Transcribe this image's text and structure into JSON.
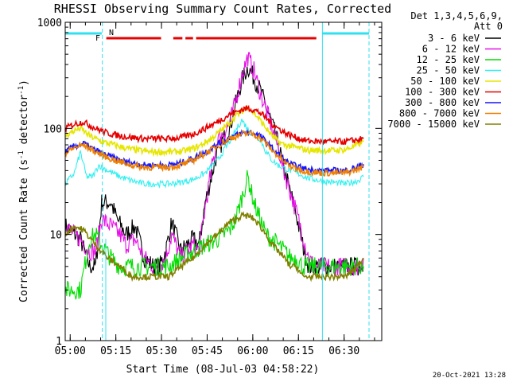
{
  "chart_data": {
    "type": "line",
    "title": "RHESSI Observing Summary Count Rates, Corrected",
    "xlabel": "Start Time (08-Jul-03 04:58:22)",
    "ylabel": "Corrected Count Rate (s",
    "ylabel_sup1": "-1",
    "ylabel_mid": " detector",
    "ylabel_sup2": "-1",
    "ylabel_end": ")",
    "y_scale": "log",
    "ylim": [
      1,
      1000
    ],
    "xlim_minutes": [
      0,
      104
    ],
    "x_start_time": "04:58:22",
    "x_ticks": [
      "05:00",
      "05:15",
      "05:30",
      "05:45",
      "06:00",
      "06:15",
      "06:30"
    ],
    "y_ticks": [
      "1",
      "10",
      "100",
      "1000"
    ],
    "legend_header": [
      "Det 1,3,4,5,6,9,",
      "Att 0"
    ],
    "timestamp": "20-Oct-2021 13:28",
    "flags": [
      {
        "label": "F",
        "color": "#e60000"
      },
      {
        "label": "N",
        "color": "#30e0f0"
      }
    ],
    "series": [
      {
        "name": "3 - 6 keV",
        "color": "#000000",
        "points": [
          [
            0,
            12
          ],
          [
            5,
            9
          ],
          [
            8,
            5
          ],
          [
            10,
            5
          ],
          [
            12,
            20
          ],
          [
            15,
            20
          ],
          [
            17,
            14
          ],
          [
            20,
            10
          ],
          [
            23,
            12
          ],
          [
            26,
            6
          ],
          [
            29,
            5
          ],
          [
            31,
            5
          ],
          [
            33,
            7
          ],
          [
            35,
            13
          ],
          [
            38,
            7
          ],
          [
            40,
            8
          ],
          [
            42,
            9
          ],
          [
            44,
            8
          ],
          [
            46,
            20
          ],
          [
            48,
            35
          ],
          [
            50,
            60
          ],
          [
            52,
            80
          ],
          [
            54,
            100
          ],
          [
            56,
            170
          ],
          [
            58,
            280
          ],
          [
            60,
            380
          ],
          [
            62,
            300
          ],
          [
            64,
            230
          ],
          [
            66,
            160
          ],
          [
            68,
            110
          ],
          [
            70,
            70
          ],
          [
            72,
            40
          ],
          [
            74,
            25
          ],
          [
            76,
            15
          ],
          [
            78,
            8
          ],
          [
            80,
            5
          ],
          [
            82,
            5
          ],
          [
            84,
            5
          ],
          [
            86,
            5
          ],
          [
            88,
            5
          ],
          [
            90,
            5
          ],
          [
            92,
            5
          ],
          [
            94,
            5
          ],
          [
            96,
            5
          ],
          [
            98,
            5
          ]
        ]
      },
      {
        "name": "6 - 12 keV",
        "color": "#e60fe6",
        "points": [
          [
            0,
            12
          ],
          [
            5,
            9
          ],
          [
            8,
            7
          ],
          [
            10,
            7
          ],
          [
            12,
            14
          ],
          [
            15,
            12
          ],
          [
            18,
            10
          ],
          [
            20,
            8
          ],
          [
            23,
            9
          ],
          [
            26,
            6
          ],
          [
            29,
            5
          ],
          [
            31,
            5
          ],
          [
            33,
            6
          ],
          [
            35,
            10
          ],
          [
            38,
            6
          ],
          [
            40,
            7
          ],
          [
            42,
            8
          ],
          [
            44,
            7
          ],
          [
            46,
            18
          ],
          [
            48,
            40
          ],
          [
            50,
            80
          ],
          [
            52,
            90
          ],
          [
            54,
            110
          ],
          [
            56,
            180
          ],
          [
            58,
            320
          ],
          [
            60,
            470
          ],
          [
            62,
            350
          ],
          [
            64,
            220
          ],
          [
            66,
            150
          ],
          [
            68,
            100
          ],
          [
            70,
            65
          ],
          [
            72,
            38
          ],
          [
            74,
            25
          ],
          [
            76,
            16
          ],
          [
            78,
            10
          ],
          [
            80,
            6
          ],
          [
            82,
            5
          ],
          [
            84,
            5
          ],
          [
            86,
            5
          ],
          [
            88,
            5
          ],
          [
            90,
            5
          ],
          [
            92,
            5
          ],
          [
            94,
            5
          ],
          [
            96,
            5
          ],
          [
            98,
            6
          ]
        ]
      },
      {
        "name": "12 - 25 keV",
        "color": "#00dd00",
        "points": [
          [
            0,
            3
          ],
          [
            5,
            3
          ],
          [
            8,
            9
          ],
          [
            10,
            10
          ],
          [
            12,
            8
          ],
          [
            15,
            6
          ],
          [
            18,
            5
          ],
          [
            22,
            5
          ],
          [
            26,
            5
          ],
          [
            30,
            5
          ],
          [
            34,
            5
          ],
          [
            38,
            6
          ],
          [
            42,
            7
          ],
          [
            46,
            8
          ],
          [
            50,
            9
          ],
          [
            54,
            11
          ],
          [
            56,
            14
          ],
          [
            58,
            22
          ],
          [
            60,
            35
          ],
          [
            62,
            20
          ],
          [
            64,
            14
          ],
          [
            66,
            10
          ],
          [
            68,
            9
          ],
          [
            70,
            8
          ],
          [
            72,
            7
          ],
          [
            74,
            6
          ],
          [
            76,
            6
          ],
          [
            78,
            5
          ],
          [
            80,
            5
          ],
          [
            84,
            5
          ],
          [
            88,
            5
          ],
          [
            92,
            5
          ],
          [
            96,
            5
          ],
          [
            98,
            5
          ]
        ]
      },
      {
        "name": "25 - 50 keV",
        "color": "#30f0f0",
        "points": [
          [
            0,
            30
          ],
          [
            3,
            38
          ],
          [
            5,
            60
          ],
          [
            7,
            35
          ],
          [
            9,
            35
          ],
          [
            11,
            45
          ],
          [
            14,
            40
          ],
          [
            18,
            35
          ],
          [
            22,
            32
          ],
          [
            26,
            30
          ],
          [
            30,
            30
          ],
          [
            34,
            30
          ],
          [
            38,
            31
          ],
          [
            42,
            33
          ],
          [
            46,
            38
          ],
          [
            50,
            50
          ],
          [
            54,
            75
          ],
          [
            58,
            120
          ],
          [
            61,
            90
          ],
          [
            64,
            80
          ],
          [
            66,
            60
          ],
          [
            68,
            50
          ],
          [
            70,
            45
          ],
          [
            72,
            42
          ],
          [
            74,
            40
          ],
          [
            76,
            38
          ],
          [
            78,
            36
          ],
          [
            80,
            34
          ],
          [
            84,
            32
          ],
          [
            88,
            31
          ],
          [
            92,
            30
          ],
          [
            96,
            32
          ],
          [
            98,
            35
          ]
        ]
      },
      {
        "name": "50 - 100 keV",
        "color": "#e6e600",
        "points": [
          [
            0,
            85
          ],
          [
            3,
            95
          ],
          [
            5,
            100
          ],
          [
            8,
            85
          ],
          [
            12,
            75
          ],
          [
            16,
            70
          ],
          [
            20,
            65
          ],
          [
            24,
            62
          ],
          [
            28,
            60
          ],
          [
            32,
            60
          ],
          [
            36,
            60
          ],
          [
            40,
            62
          ],
          [
            44,
            68
          ],
          [
            48,
            80
          ],
          [
            52,
            100
          ],
          [
            56,
            130
          ],
          [
            60,
            160
          ],
          [
            62,
            140
          ],
          [
            64,
            120
          ],
          [
            66,
            100
          ],
          [
            68,
            85
          ],
          [
            70,
            75
          ],
          [
            72,
            70
          ],
          [
            74,
            68
          ],
          [
            76,
            66
          ],
          [
            78,
            64
          ],
          [
            80,
            62
          ],
          [
            84,
            62
          ],
          [
            88,
            62
          ],
          [
            92,
            63
          ],
          [
            96,
            70
          ],
          [
            98,
            75
          ]
        ]
      },
      {
        "name": "100 - 300 keV",
        "color": "#e60000",
        "points": [
          [
            0,
            100
          ],
          [
            3,
            110
          ],
          [
            6,
            115
          ],
          [
            10,
            100
          ],
          [
            14,
            90
          ],
          [
            18,
            85
          ],
          [
            22,
            82
          ],
          [
            26,
            80
          ],
          [
            30,
            80
          ],
          [
            34,
            80
          ],
          [
            38,
            82
          ],
          [
            42,
            88
          ],
          [
            46,
            100
          ],
          [
            50,
            115
          ],
          [
            54,
            135
          ],
          [
            58,
            150
          ],
          [
            60,
            155
          ],
          [
            62,
            150
          ],
          [
            64,
            140
          ],
          [
            66,
            125
          ],
          [
            68,
            110
          ],
          [
            70,
            100
          ],
          [
            72,
            92
          ],
          [
            74,
            86
          ],
          [
            76,
            82
          ],
          [
            78,
            78
          ],
          [
            80,
            76
          ],
          [
            84,
            75
          ],
          [
            88,
            75
          ],
          [
            92,
            75
          ],
          [
            96,
            78
          ],
          [
            98,
            80
          ]
        ]
      },
      {
        "name": "300 - 800 keV",
        "color": "#1515ff",
        "points": [
          [
            0,
            60
          ],
          [
            3,
            68
          ],
          [
            6,
            72
          ],
          [
            10,
            62
          ],
          [
            14,
            55
          ],
          [
            18,
            50
          ],
          [
            22,
            47
          ],
          [
            26,
            45
          ],
          [
            30,
            45
          ],
          [
            34,
            45
          ],
          [
            38,
            47
          ],
          [
            42,
            52
          ],
          [
            46,
            60
          ],
          [
            50,
            70
          ],
          [
            54,
            82
          ],
          [
            58,
            90
          ],
          [
            60,
            92
          ],
          [
            62,
            90
          ],
          [
            64,
            85
          ],
          [
            66,
            75
          ],
          [
            68,
            65
          ],
          [
            70,
            57
          ],
          [
            72,
            50
          ],
          [
            74,
            46
          ],
          [
            76,
            44
          ],
          [
            78,
            42
          ],
          [
            80,
            41
          ],
          [
            84,
            40
          ],
          [
            88,
            40
          ],
          [
            92,
            40
          ],
          [
            96,
            43
          ],
          [
            98,
            46
          ]
        ]
      },
      {
        "name": "800 - 7000 keV",
        "color": "#f08000",
        "points": [
          [
            0,
            58
          ],
          [
            3,
            66
          ],
          [
            6,
            70
          ],
          [
            10,
            60
          ],
          [
            14,
            53
          ],
          [
            18,
            48
          ],
          [
            22,
            45
          ],
          [
            26,
            43
          ],
          [
            30,
            43
          ],
          [
            34,
            43
          ],
          [
            38,
            45
          ],
          [
            42,
            50
          ],
          [
            46,
            58
          ],
          [
            50,
            68
          ],
          [
            54,
            80
          ],
          [
            58,
            88
          ],
          [
            60,
            90
          ],
          [
            62,
            88
          ],
          [
            64,
            82
          ],
          [
            66,
            72
          ],
          [
            68,
            62
          ],
          [
            70,
            55
          ],
          [
            72,
            48
          ],
          [
            74,
            44
          ],
          [
            76,
            42
          ],
          [
            78,
            40
          ],
          [
            80,
            39
          ],
          [
            84,
            38
          ],
          [
            88,
            38
          ],
          [
            92,
            38
          ],
          [
            96,
            41
          ],
          [
            98,
            44
          ]
        ]
      },
      {
        "name": "7000 - 15000 keV",
        "color": "#808000",
        "points": [
          [
            0,
            10
          ],
          [
            3,
            12
          ],
          [
            6,
            11
          ],
          [
            10,
            8
          ],
          [
            14,
            6
          ],
          [
            18,
            5
          ],
          [
            22,
            4
          ],
          [
            26,
            4
          ],
          [
            30,
            4
          ],
          [
            34,
            4
          ],
          [
            38,
            5
          ],
          [
            42,
            6
          ],
          [
            46,
            8
          ],
          [
            50,
            10
          ],
          [
            54,
            13
          ],
          [
            58,
            15
          ],
          [
            60,
            15
          ],
          [
            62,
            14
          ],
          [
            64,
            12
          ],
          [
            66,
            10
          ],
          [
            68,
            8
          ],
          [
            70,
            7
          ],
          [
            72,
            6
          ],
          [
            74,
            5
          ],
          [
            76,
            5
          ],
          [
            78,
            4
          ],
          [
            80,
            4
          ],
          [
            84,
            4
          ],
          [
            88,
            4
          ],
          [
            92,
            4
          ],
          [
            96,
            5
          ],
          [
            98,
            6
          ]
        ]
      }
    ]
  }
}
